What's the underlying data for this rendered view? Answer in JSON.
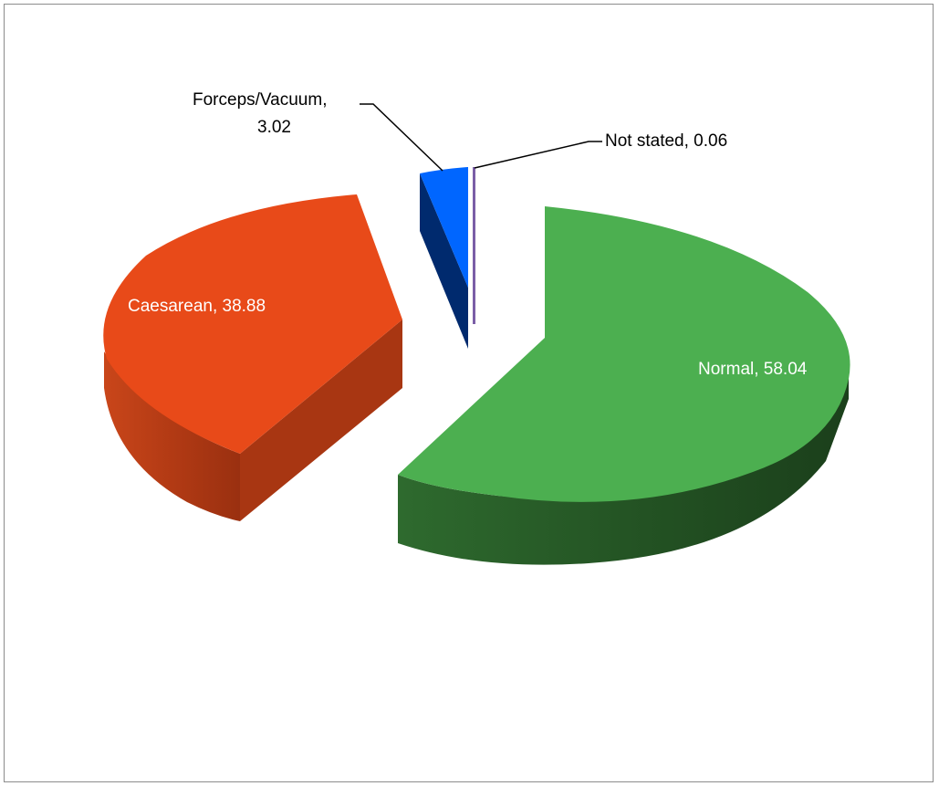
{
  "chart_data": {
    "type": "pie",
    "style": "3D exploded pie",
    "title": "",
    "slices": [
      {
        "label": "Normal",
        "value": 58.04,
        "data_label": "Normal, 58.04",
        "color": "#4CAF50"
      },
      {
        "label": "Caesarean",
        "value": 38.88,
        "data_label": "Caesarean, 38.88",
        "color": "#E84A19"
      },
      {
        "label": "Forceps/Vacuum",
        "value": 3.02,
        "data_label_line1": "Forceps/Vacuum,",
        "data_label_line2": "3.02",
        "color": "#0066FF"
      },
      {
        "label": "Not stated",
        "value": 0.06,
        "data_label": "Not stated, 0.06",
        "color": "#7B5EA7"
      }
    ],
    "legend": "none"
  }
}
